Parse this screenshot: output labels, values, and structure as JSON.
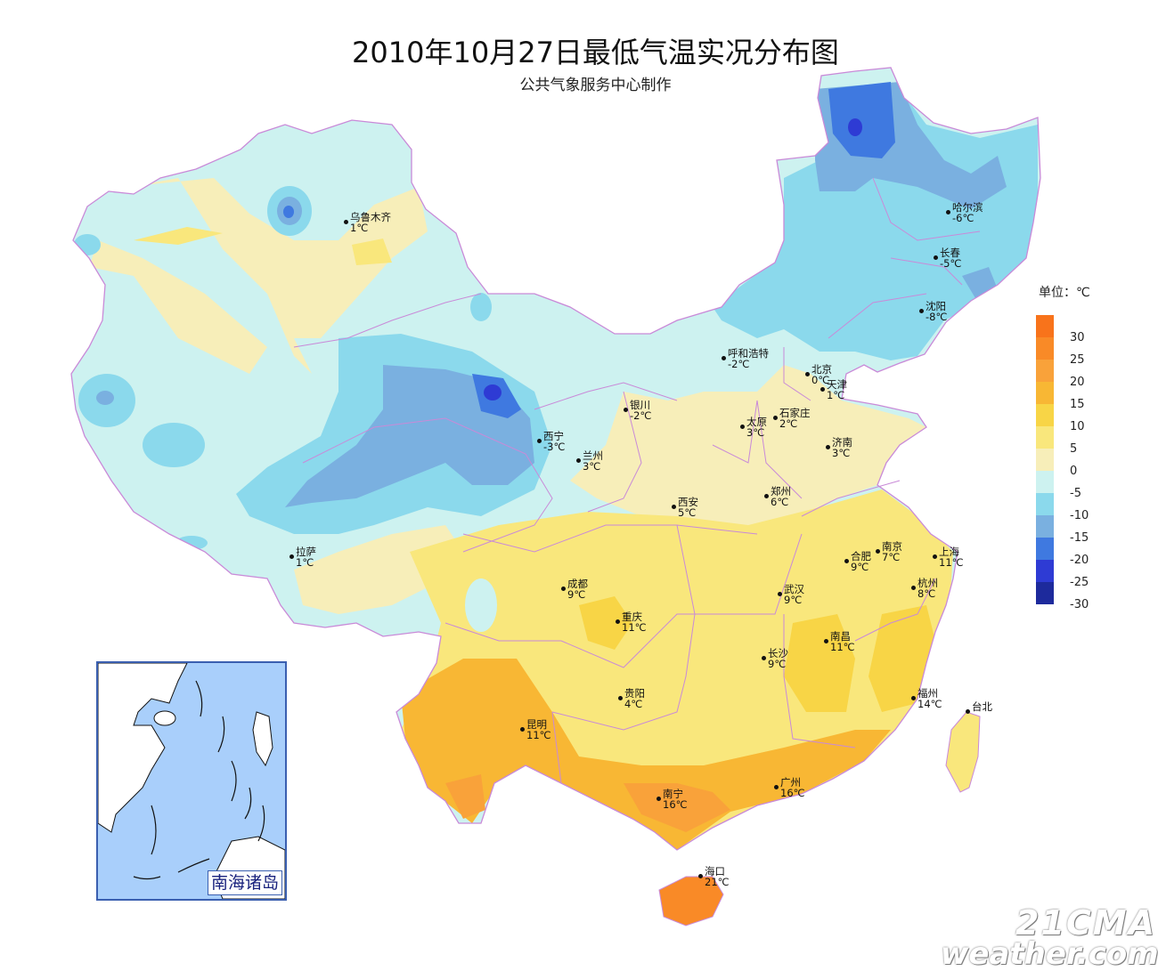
{
  "title": "2010年10月27日最低气温实况分布图",
  "subtitle": "公共气象服务中心制作",
  "legend": {
    "title": "单位：℃",
    "labels": [
      "30",
      "25",
      "20",
      "15",
      "10",
      "5",
      "0",
      "-5",
      "-10",
      "-15",
      "-20",
      "-25",
      "-30"
    ],
    "colors": [
      "#f8731b",
      "#f98a27",
      "#f9a23a",
      "#f8b734",
      "#f8d546",
      "#f9e77c",
      "#f7eeb9",
      "#cdf2f0",
      "#8bd9ec",
      "#7ab0e0",
      "#3f79e0",
      "#2e3bd4",
      "#1d2a9c"
    ]
  },
  "cities": [
    {
      "name": "乌鲁木齐",
      "temp": "1℃"
    },
    {
      "name": "哈尔滨",
      "temp": "-6℃"
    },
    {
      "name": "长春",
      "temp": "-5℃"
    },
    {
      "name": "沈阳",
      "temp": "-8℃"
    },
    {
      "name": "呼和浩特",
      "temp": "-2℃"
    },
    {
      "name": "北京",
      "temp": "0℃"
    },
    {
      "name": "天津",
      "temp": "1℃"
    },
    {
      "name": "银川",
      "temp": "-2℃"
    },
    {
      "name": "石家庄",
      "temp": "2℃"
    },
    {
      "name": "太原",
      "temp": "3℃"
    },
    {
      "name": "西宁",
      "temp": "-3℃"
    },
    {
      "name": "济南",
      "temp": "3℃"
    },
    {
      "name": "兰州",
      "temp": "3℃"
    },
    {
      "name": "郑州",
      "temp": "6℃"
    },
    {
      "name": "西安",
      "temp": "5℃"
    },
    {
      "name": "拉萨",
      "temp": "1℃"
    },
    {
      "name": "南京",
      "temp": "7℃"
    },
    {
      "name": "上海",
      "temp": "11℃"
    },
    {
      "name": "合肥",
      "temp": "9℃"
    },
    {
      "name": "成都",
      "temp": "9℃"
    },
    {
      "name": "杭州",
      "temp": "8℃"
    },
    {
      "name": "武汉",
      "temp": "9℃"
    },
    {
      "name": "重庆",
      "temp": "11℃"
    },
    {
      "name": "南昌",
      "temp": "11℃"
    },
    {
      "name": "长沙",
      "temp": "9℃"
    },
    {
      "name": "贵阳",
      "temp": "4℃"
    },
    {
      "name": "福州",
      "temp": "14℃"
    },
    {
      "name": "台北",
      "temp": ""
    },
    {
      "name": "昆明",
      "temp": "11℃"
    },
    {
      "name": "广州",
      "temp": "16℃"
    },
    {
      "name": "南宁",
      "temp": "16℃"
    },
    {
      "name": "海口",
      "temp": "21℃"
    }
  ],
  "inset_label": "南海诸岛",
  "watermark": {
    "line1": "21CMA",
    "line2": "weather.com.cn"
  }
}
